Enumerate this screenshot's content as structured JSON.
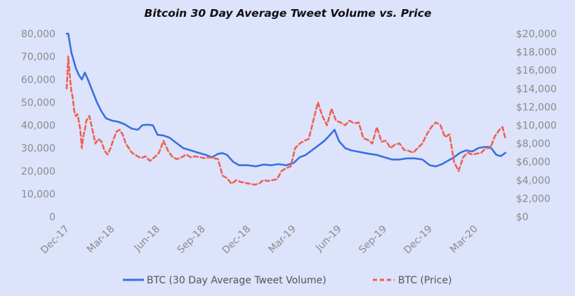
{
  "chart_data": {
    "type": "line",
    "title": "Bitcoin 30 Day Average Tweet Volume vs. Price",
    "xlabel": "",
    "ylabel": "",
    "y2label": "",
    "x_tick_labels": [
      "Dec-17",
      "Mar-18",
      "Jun-18",
      "Sep-18",
      "Dec-18",
      "Mar-19",
      "Jun-19",
      "Sep-19",
      "Dec-19",
      "Mar-20"
    ],
    "y_left": {
      "ticks": [
        "0",
        "10,000",
        "20,000",
        "30,000",
        "40,000",
        "50,000",
        "60,000",
        "70,000",
        "80,000"
      ],
      "range": [
        0,
        80000
      ]
    },
    "y_right": {
      "ticks": [
        "$0",
        "$2,000",
        "$4,000",
        "$6,000",
        "$8,000",
        "$10,000",
        "$12,000",
        "$14,000",
        "$16,000",
        "$18,000",
        "$20,000"
      ],
      "range": [
        0,
        20000
      ]
    },
    "x_range_months": [
      0,
      29
    ],
    "grid": false,
    "legend_position": "bottom",
    "series": [
      {
        "name": "BTC (30 Day Average Tweet Volume)",
        "axis": "left",
        "style": "solid",
        "color": "#3a6fe0",
        "x": [
          0,
          0.1,
          0.3,
          0.6,
          0.8,
          1.0,
          1.2,
          1.4,
          1.7,
          2.0,
          2.3,
          2.6,
          3.0,
          3.4,
          3.8,
          4.3,
          4.7,
          5.0,
          5.3,
          5.7,
          6.0,
          6.4,
          6.8,
          7.3,
          7.7,
          8.2,
          8.7,
          9.2,
          9.6,
          10.0,
          10.3,
          10.6,
          11.0,
          11.4,
          12.0,
          12.5,
          13.0,
          13.5,
          14.0,
          14.5,
          15.0,
          15.4,
          15.8,
          16.2,
          16.6,
          17.0,
          17.3,
          17.7,
          18.0,
          18.4,
          18.8,
          19.2,
          19.6,
          20.0,
          20.5,
          21.0,
          21.5,
          22.0,
          22.5,
          23.0,
          23.5,
          24.0,
          24.4,
          24.8,
          25.2,
          25.6,
          26.0,
          26.4,
          26.8,
          27.2,
          27.6,
          28.0,
          28.4,
          28.7,
          29.0
        ],
        "values": [
          80000,
          80000,
          72000,
          65000,
          62000,
          60000,
          63000,
          60000,
          55000,
          50000,
          46000,
          43000,
          42000,
          41500,
          40500,
          38500,
          38000,
          40000,
          40200,
          40000,
          35800,
          35500,
          34500,
          32000,
          30000,
          29000,
          28000,
          27000,
          26000,
          27500,
          27800,
          27000,
          24000,
          22500,
          22500,
          22000,
          22800,
          22500,
          23000,
          22500,
          23500,
          26000,
          27000,
          29000,
          31000,
          33000,
          35000,
          38000,
          33000,
          30000,
          29000,
          28500,
          28000,
          27500,
          27000,
          26000,
          25000,
          25000,
          25500,
          25500,
          25000,
          22500,
          22000,
          23000,
          24500,
          26000,
          28000,
          29000,
          28500,
          30000,
          30500,
          30500,
          27000,
          26500,
          28000
        ]
      },
      {
        "name": "BTC (Price)",
        "axis": "right",
        "style": "dashed",
        "color": "#f06050",
        "x": [
          0,
          0.1,
          0.2,
          0.3,
          0.4,
          0.5,
          0.6,
          0.7,
          0.8,
          0.9,
          1.0,
          1.1,
          1.2,
          1.3,
          1.5,
          1.7,
          1.9,
          2.1,
          2.3,
          2.5,
          2.7,
          2.9,
          3.1,
          3.3,
          3.5,
          3.7,
          3.9,
          4.1,
          4.3,
          4.6,
          4.9,
          5.2,
          5.5,
          5.8,
          6.1,
          6.4,
          6.7,
          7.0,
          7.3,
          7.6,
          7.9,
          8.2,
          8.5,
          8.8,
          9.1,
          9.4,
          9.7,
          10.0,
          10.3,
          10.6,
          10.9,
          11.2,
          11.5,
          11.8,
          12.1,
          12.4,
          12.7,
          13.0,
          13.3,
          13.6,
          13.9,
          14.2,
          14.5,
          14.8,
          15.1,
          15.4,
          15.7,
          16.0,
          16.3,
          16.6,
          16.9,
          17.2,
          17.5,
          17.8,
          18.1,
          18.4,
          18.7,
          19.0,
          19.3,
          19.6,
          19.9,
          20.2,
          20.5,
          20.8,
          21.1,
          21.4,
          21.7,
          22.0,
          22.3,
          22.6,
          22.9,
          23.2,
          23.5,
          23.8,
          24.1,
          24.4,
          24.7,
          25.0,
          25.3,
          25.6,
          25.9,
          26.2,
          26.5,
          26.8,
          27.1,
          27.4,
          27.7,
          28.0,
          28.3,
          28.6,
          28.8,
          29.0
        ],
        "values": [
          14000,
          17500,
          15500,
          13800,
          13000,
          11500,
          11000,
          11200,
          10500,
          9500,
          7500,
          8800,
          9500,
          10500,
          11000,
          9500,
          8000,
          8500,
          8200,
          7200,
          6800,
          7500,
          8500,
          9300,
          9500,
          9000,
          8000,
          7500,
          7000,
          6700,
          6400,
          6600,
          6100,
          6500,
          7000,
          8300,
          7200,
          6500,
          6300,
          6500,
          6800,
          6500,
          6600,
          6500,
          6400,
          6500,
          6400,
          6300,
          4500,
          4200,
          3600,
          4000,
          3800,
          3700,
          3600,
          3500,
          3600,
          4000,
          3900,
          4000,
          4100,
          5000,
          5300,
          5500,
          7500,
          8000,
          8300,
          8500,
          10500,
          12500,
          11000,
          10000,
          11800,
          10500,
          10300,
          10000,
          10500,
          10200,
          10300,
          8600,
          8400,
          8000,
          9800,
          8200,
          8300,
          7500,
          7900,
          8000,
          7300,
          7200,
          7000,
          7500,
          8000,
          9000,
          9800,
          10300,
          10000,
          8700,
          9000,
          6000,
          5000,
          6500,
          7000,
          6800,
          6900,
          7000,
          7500,
          7500,
          8800,
          9500,
          9800,
          8500
        ]
      }
    ]
  },
  "legend": {
    "series1_label": "BTC (30 Day Average Tweet Volume)",
    "series2_label": "BTC (Price)"
  }
}
